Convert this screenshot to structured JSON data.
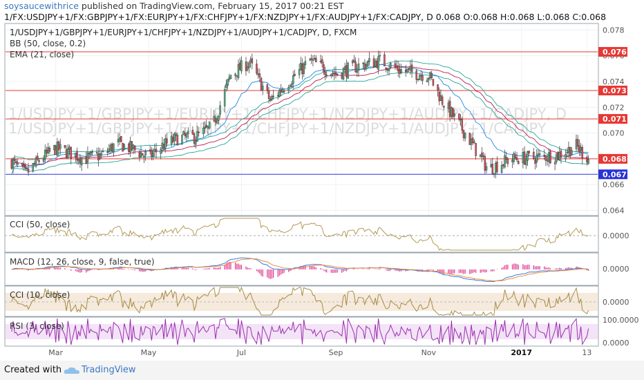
{
  "header": {
    "author": "soysaucewithrice",
    "published": "published on TradingView.com, February 15, 2017 00:21 EST",
    "symbol_line": "1/FX:USDJPY+1/FX:GBPJPY+1/FX:EURJPY+1/FX:CHFJPY+1/FX:NZDJPY+1/FX:AUDJPY+1/FX:CADJPY, D  0.068 O:0.068 H:0.068 L:0.068 C:0.068"
  },
  "main_pane": {
    "title": "1/USDJPY+1/GBPJPY+1/EURJPY+1/CHFJPY+1/NZDJPY+1/AUDJPY+1/CADJPY, D, FXCM",
    "bb_label": "BB (50, close, 0.2)",
    "ema_label": "EMA (21, close)",
    "watermark_line1": "1/USDJPY+1/GBPJPY+1/EURJPY+1/CHFJPY+1/NZDJPY+1/AUDJPY+1/CADJPY, D",
    "watermark_line2": "1/USDJPY+1/GBPJPY+1/EURJPY+1/CHFJPY+1/NZDJPY+1/AUDJPY+1/CADJPY"
  },
  "indicators": {
    "cci50_label": "CCI (50, close)",
    "cci50_value": "0.0000",
    "macd_label": "MACD (12, 26, close, 9, false, true)",
    "macd_value": "0.0000",
    "cci10_label": "CCI (10, close)",
    "cci10_value": "0.0000",
    "rsi_label": "RSI (3, close)",
    "rsi_top": "100.0000",
    "rsi_bottom": "0.0000"
  },
  "footer": {
    "created_with": "Created with",
    "brand": "TradingView"
  },
  "colors": {
    "up": "#53b987",
    "down": "#eb4d5c",
    "resistance": "#e53935",
    "support": "#2a32d8",
    "cci": "#b49a55",
    "cci_band": "#f5eadb",
    "rsi": "#9b2fae",
    "rsi_band": "#f3e3f7",
    "macd_line": "#3a7cd5",
    "signal_line": "#ef8a3a",
    "histogram": "#e0338a",
    "ema": "#1e88e5",
    "bb": "#b71c4a",
    "bb_outer": "#26a69a"
  },
  "chart_data": {
    "type": "candlestick",
    "period": "D",
    "x_ticks": [
      "Mar",
      "May",
      "Jul",
      "Sep",
      "Nov",
      "2017",
      "13"
    ],
    "y_ticks": [
      "0.078",
      "0.076",
      "0.074",
      "0.072",
      "0.070",
      "0.068",
      "0.066",
      "0.064"
    ],
    "ylim": [
      0.0636,
      0.0785
    ],
    "horizontal_levels": [
      {
        "label": "0.076",
        "value": 0.0763,
        "color": "#e53935"
      },
      {
        "label": "0.073",
        "value": 0.0733,
        "color": "#e53935"
      },
      {
        "label": "0.071",
        "value": 0.0711,
        "color": "#e53935"
      },
      {
        "label": "0.068",
        "value": 0.068,
        "color": "#e53935"
      },
      {
        "label": "0.067",
        "value": 0.0668,
        "color": "#2a32d8"
      }
    ],
    "approx_close_path": [
      {
        "date": "2016-02-01",
        "close": 0.0678
      },
      {
        "date": "2016-02-10",
        "close": 0.0668
      },
      {
        "date": "2016-02-20",
        "close": 0.068
      },
      {
        "date": "2016-03-01",
        "close": 0.0688
      },
      {
        "date": "2016-03-10",
        "close": 0.0685
      },
      {
        "date": "2016-03-20",
        "close": 0.068
      },
      {
        "date": "2016-04-01",
        "close": 0.0683
      },
      {
        "date": "2016-04-10",
        "close": 0.0692
      },
      {
        "date": "2016-04-20",
        "close": 0.0688
      },
      {
        "date": "2016-05-01",
        "close": 0.0681
      },
      {
        "date": "2016-05-10",
        "close": 0.069
      },
      {
        "date": "2016-05-20",
        "close": 0.0696
      },
      {
        "date": "2016-06-01",
        "close": 0.0697
      },
      {
        "date": "2016-06-12",
        "close": 0.0705
      },
      {
        "date": "2016-06-24",
        "close": 0.0745
      },
      {
        "date": "2016-07-06",
        "close": 0.0755
      },
      {
        "date": "2016-07-20",
        "close": 0.0725
      },
      {
        "date": "2016-08-01",
        "close": 0.074
      },
      {
        "date": "2016-08-15",
        "close": 0.0756
      },
      {
        "date": "2016-09-01",
        "close": 0.0746
      },
      {
        "date": "2016-09-15",
        "close": 0.0752
      },
      {
        "date": "2016-09-30",
        "close": 0.0756
      },
      {
        "date": "2016-10-15",
        "close": 0.0748
      },
      {
        "date": "2016-11-01",
        "close": 0.0745
      },
      {
        "date": "2016-11-10",
        "close": 0.0725
      },
      {
        "date": "2016-11-25",
        "close": 0.07
      },
      {
        "date": "2016-12-10",
        "close": 0.0672
      },
      {
        "date": "2016-12-25",
        "close": 0.068
      },
      {
        "date": "2017-01-10",
        "close": 0.0681
      },
      {
        "date": "2017-01-25",
        "close": 0.0683
      },
      {
        "date": "2017-02-06",
        "close": 0.069
      },
      {
        "date": "2017-02-14",
        "close": 0.068
      }
    ]
  }
}
